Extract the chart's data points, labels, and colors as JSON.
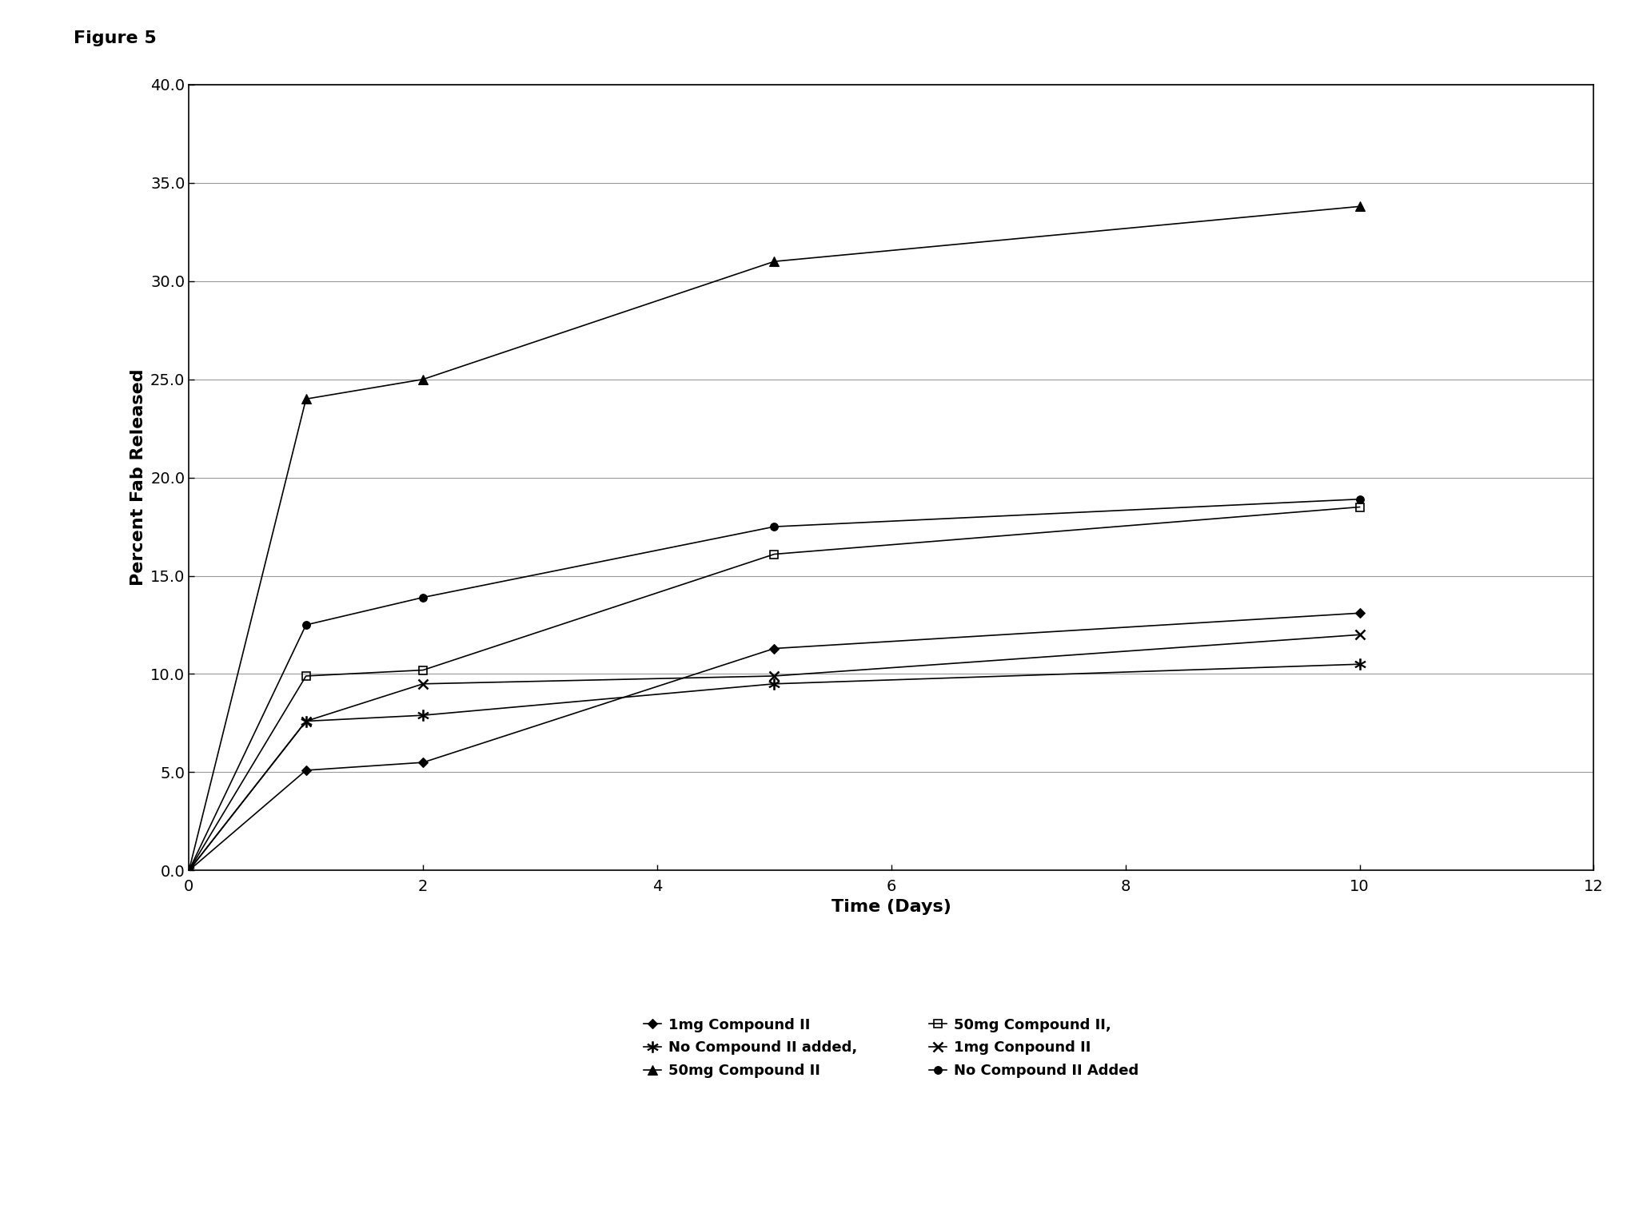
{
  "figure_label": "Figure 5",
  "xlabel": "Time (Days)",
  "ylabel": "Percent Fab Released",
  "xlim": [
    0,
    12
  ],
  "ylim": [
    0,
    40
  ],
  "xticks": [
    0,
    2,
    4,
    6,
    8,
    10,
    12
  ],
  "yticks": [
    0.0,
    5.0,
    10.0,
    15.0,
    20.0,
    25.0,
    30.0,
    35.0,
    40.0
  ],
  "series": [
    {
      "label": "1mg Compound II",
      "x": [
        0,
        1,
        2,
        5,
        10
      ],
      "y": [
        0.0,
        5.1,
        5.5,
        11.3,
        13.1
      ],
      "color": "#000000",
      "marker": "D",
      "markersize": 6,
      "linestyle": "-",
      "linewidth": 1.2,
      "fillstyle": "full",
      "markeredgewidth": 0.8
    },
    {
      "label": "No Compound II added,",
      "x": [
        0,
        1,
        2,
        5,
        10
      ],
      "y": [
        0.0,
        7.6,
        7.9,
        9.5,
        10.5
      ],
      "color": "#000000",
      "marker": "$*$",
      "markersize": 10,
      "linestyle": "-",
      "linewidth": 1.2,
      "fillstyle": "full",
      "markeredgewidth": 0.5
    },
    {
      "label": "50mg Compound II",
      "x": [
        0,
        1,
        2,
        5,
        10
      ],
      "y": [
        0.0,
        24.0,
        25.0,
        31.0,
        33.8
      ],
      "color": "#000000",
      "marker": "^",
      "markersize": 8,
      "linestyle": "-",
      "linewidth": 1.2,
      "fillstyle": "full",
      "markeredgewidth": 0.8
    },
    {
      "label": "50mg Compound II,",
      "x": [
        0,
        1,
        2,
        5,
        10
      ],
      "y": [
        0.0,
        9.9,
        10.2,
        16.1,
        18.5
      ],
      "color": "#000000",
      "marker": "s",
      "markersize": 7,
      "linestyle": "-",
      "linewidth": 1.2,
      "fillstyle": "none",
      "markeredgewidth": 1.2
    },
    {
      "label": "1mg Conpound II",
      "x": [
        0,
        1,
        2,
        5,
        10
      ],
      "y": [
        0.0,
        7.6,
        9.5,
        9.9,
        12.0
      ],
      "color": "#000000",
      "marker": "x",
      "markersize": 8,
      "linestyle": "-",
      "linewidth": 1.2,
      "fillstyle": "full",
      "markeredgewidth": 1.8
    },
    {
      "label": "No Compound II Added",
      "x": [
        0,
        1,
        2,
        5,
        10
      ],
      "y": [
        0.0,
        12.5,
        13.9,
        17.5,
        18.9
      ],
      "color": "#000000",
      "marker": "o",
      "markersize": 7,
      "linestyle": "-",
      "linewidth": 1.2,
      "fillstyle": "full",
      "markeredgewidth": 0.8
    }
  ],
  "background_color": "#ffffff",
  "grid_color": "#999999",
  "label_fontsize": 16,
  "tick_fontsize": 14,
  "legend_fontsize": 13
}
